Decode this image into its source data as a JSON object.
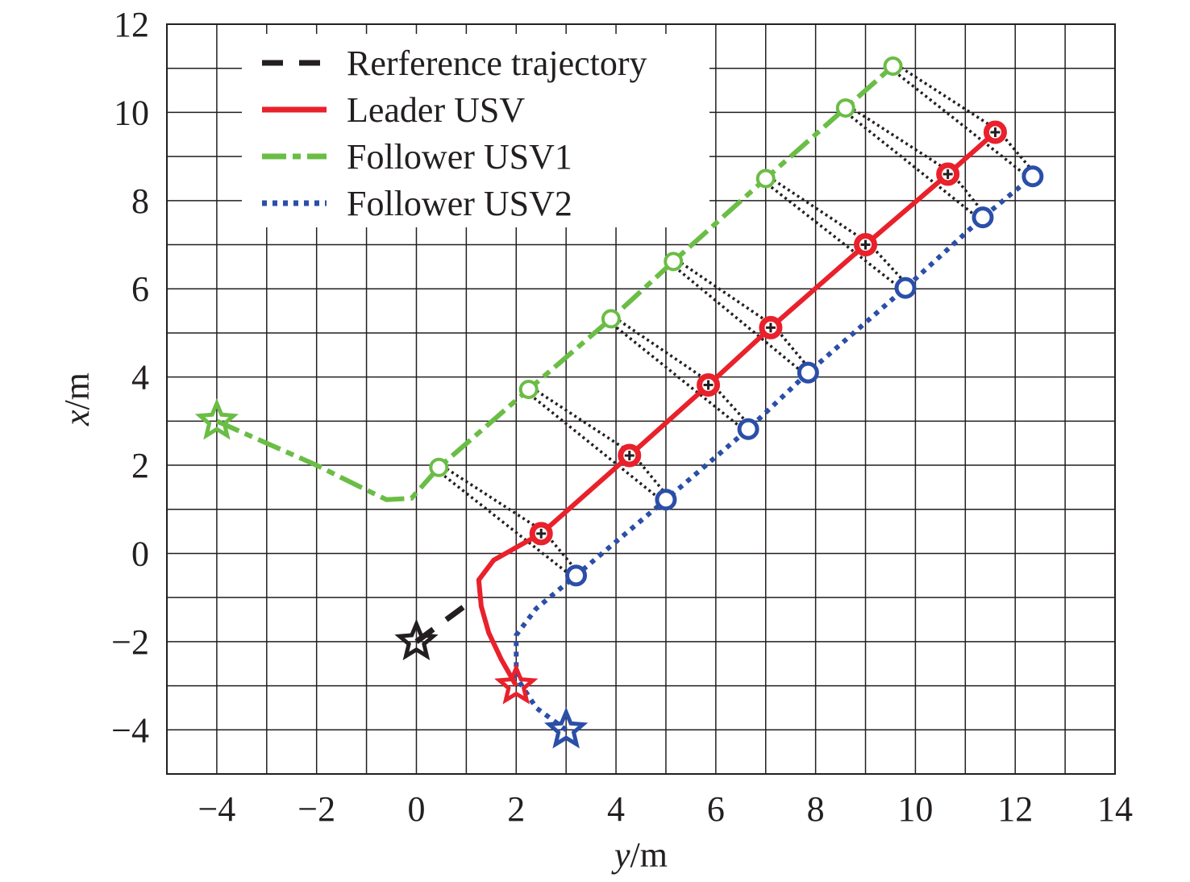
{
  "chart_data": {
    "type": "line",
    "title": "",
    "xlabel": "y/m",
    "ylabel": "x/m",
    "xlabel_parts": [
      "y",
      "/m"
    ],
    "ylabel_parts": [
      "x",
      "/m"
    ],
    "xlim": [
      -5,
      14
    ],
    "ylim": [
      -5,
      12
    ],
    "xticks": [
      -4,
      -2,
      0,
      2,
      4,
      6,
      8,
      10,
      12,
      14
    ],
    "yticks": [
      -4,
      -2,
      0,
      2,
      4,
      6,
      8,
      10,
      12
    ],
    "grid": true,
    "legend_position": "top-left",
    "series": [
      {
        "name": "Rerference trajectory",
        "color": "#231f20",
        "style": "dashed",
        "start_marker": "star",
        "points": [
          [
            0,
            -2
          ],
          [
            1.2,
            -1.0
          ]
        ]
      },
      {
        "name": "Leader USV",
        "color": "#e8212b",
        "style": "solid",
        "start_marker": "star",
        "points": [
          [
            2,
            -3
          ],
          [
            1.7,
            -2.4
          ],
          [
            1.45,
            -1.8
          ],
          [
            1.3,
            -1.2
          ],
          [
            1.25,
            -0.6
          ],
          [
            1.55,
            -0.15
          ],
          [
            2.1,
            0.2
          ],
          [
            2.5,
            0.45
          ],
          [
            4.27,
            2.22
          ],
          [
            5.85,
            3.82
          ],
          [
            7.1,
            5.12
          ],
          [
            9.0,
            7.0
          ],
          [
            10.65,
            8.6
          ],
          [
            11.6,
            9.55
          ]
        ],
        "markers": [
          [
            2.5,
            0.45
          ],
          [
            4.27,
            2.22
          ],
          [
            5.85,
            3.82
          ],
          [
            7.1,
            5.12
          ],
          [
            9.0,
            7.0
          ],
          [
            10.65,
            8.6
          ],
          [
            11.6,
            9.55
          ]
        ]
      },
      {
        "name": "Follower USV1",
        "color": "#6abd45",
        "style": "dashdot",
        "start_marker": "star",
        "points": [
          [
            -4,
            3
          ],
          [
            -3.0,
            2.5
          ],
          [
            -2.0,
            2.0
          ],
          [
            -1.2,
            1.55
          ],
          [
            -0.6,
            1.22
          ],
          [
            -0.1,
            1.25
          ],
          [
            0.45,
            1.95
          ],
          [
            2.25,
            3.72
          ],
          [
            3.9,
            5.32
          ],
          [
            5.15,
            6.62
          ],
          [
            7.0,
            8.5
          ],
          [
            8.6,
            10.1
          ],
          [
            9.55,
            11.05
          ]
        ],
        "markers": [
          [
            0.45,
            1.95
          ],
          [
            2.25,
            3.72
          ],
          [
            3.9,
            5.32
          ],
          [
            5.15,
            6.62
          ],
          [
            7.0,
            8.5
          ],
          [
            8.6,
            10.1
          ],
          [
            9.55,
            11.05
          ]
        ]
      },
      {
        "name": "Follower USV2",
        "color": "#2b4fa8",
        "style": "dotted",
        "start_marker": "star",
        "points": [
          [
            3,
            -4
          ],
          [
            2.4,
            -3.5
          ],
          [
            2.0,
            -2.8
          ],
          [
            2.0,
            -1.85
          ],
          [
            2.4,
            -1.25
          ],
          [
            3.2,
            -0.5
          ],
          [
            5.0,
            1.22
          ],
          [
            6.65,
            2.82
          ],
          [
            7.85,
            4.1
          ],
          [
            9.8,
            6.02
          ],
          [
            11.35,
            7.62
          ],
          [
            12.35,
            8.55
          ]
        ],
        "markers": [
          [
            3.2,
            -0.5
          ],
          [
            5.0,
            1.22
          ],
          [
            6.65,
            2.82
          ],
          [
            7.85,
            4.1
          ],
          [
            9.8,
            6.02
          ],
          [
            11.35,
            7.62
          ],
          [
            12.35,
            8.55
          ]
        ]
      }
    ]
  }
}
